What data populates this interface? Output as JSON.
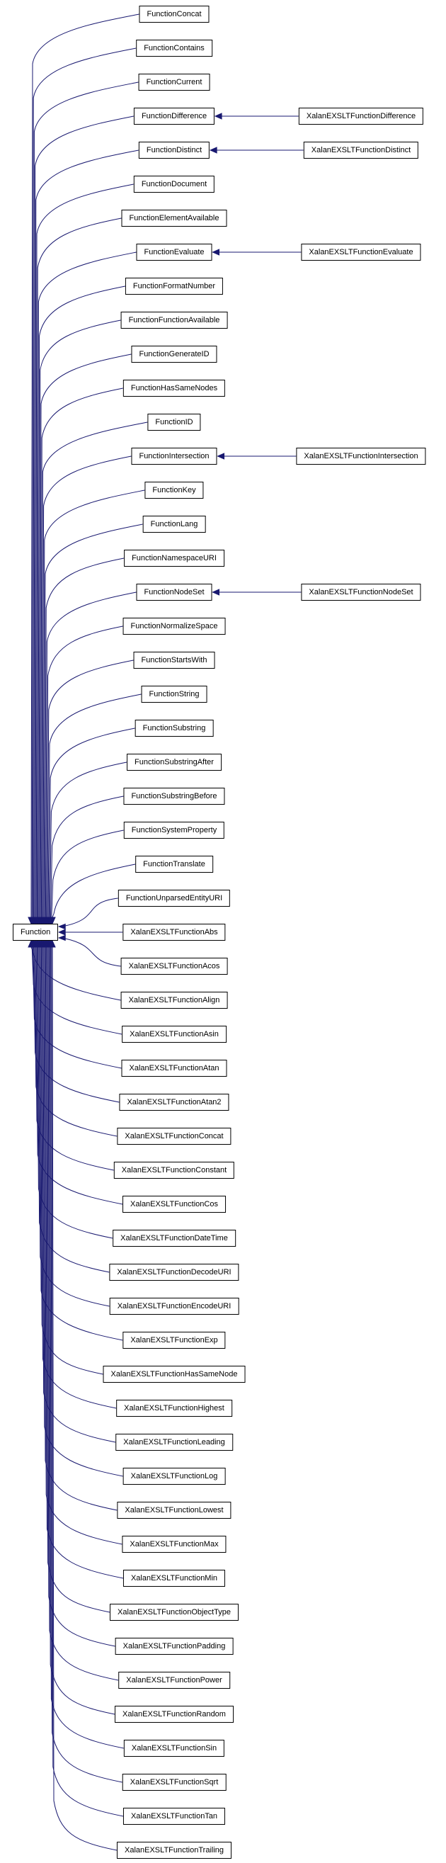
{
  "diagram": {
    "kind": "class-inheritance-graph",
    "base": {
      "label": "Function"
    },
    "colors": {
      "edge": "#191970",
      "box_border": "#000000",
      "text": "#000000",
      "background": "#ffffff"
    },
    "rows": [
      {
        "label": "FunctionConcat",
        "derived": null
      },
      {
        "label": "FunctionContains",
        "derived": null
      },
      {
        "label": "FunctionCurrent",
        "derived": null
      },
      {
        "label": "FunctionDifference",
        "derived": "XalanEXSLTFunctionDifference"
      },
      {
        "label": "FunctionDistinct",
        "derived": "XalanEXSLTFunctionDistinct"
      },
      {
        "label": "FunctionDocument",
        "derived": null
      },
      {
        "label": "FunctionElementAvailable",
        "derived": null
      },
      {
        "label": "FunctionEvaluate",
        "derived": "XalanEXSLTFunctionEvaluate"
      },
      {
        "label": "FunctionFormatNumber",
        "derived": null
      },
      {
        "label": "FunctionFunctionAvailable",
        "derived": null
      },
      {
        "label": "FunctionGenerateID",
        "derived": null
      },
      {
        "label": "FunctionHasSameNodes",
        "derived": null
      },
      {
        "label": "FunctionID",
        "derived": null
      },
      {
        "label": "FunctionIntersection",
        "derived": "XalanEXSLTFunctionIntersection"
      },
      {
        "label": "FunctionKey",
        "derived": null
      },
      {
        "label": "FunctionLang",
        "derived": null
      },
      {
        "label": "FunctionNamespaceURI",
        "derived": null
      },
      {
        "label": "FunctionNodeSet",
        "derived": "XalanEXSLTFunctionNodeSet"
      },
      {
        "label": "FunctionNormalizeSpace",
        "derived": null
      },
      {
        "label": "FunctionStartsWith",
        "derived": null
      },
      {
        "label": "FunctionString",
        "derived": null
      },
      {
        "label": "FunctionSubstring",
        "derived": null
      },
      {
        "label": "FunctionSubstringAfter",
        "derived": null
      },
      {
        "label": "FunctionSubstringBefore",
        "derived": null
      },
      {
        "label": "FunctionSystemProperty",
        "derived": null
      },
      {
        "label": "FunctionTranslate",
        "derived": null
      },
      {
        "label": "FunctionUnparsedEntityURI",
        "derived": null
      },
      {
        "label": "XalanEXSLTFunctionAbs",
        "derived": null
      },
      {
        "label": "XalanEXSLTFunctionAcos",
        "derived": null
      },
      {
        "label": "XalanEXSLTFunctionAlign",
        "derived": null
      },
      {
        "label": "XalanEXSLTFunctionAsin",
        "derived": null
      },
      {
        "label": "XalanEXSLTFunctionAtan",
        "derived": null
      },
      {
        "label": "XalanEXSLTFunctionAtan2",
        "derived": null
      },
      {
        "label": "XalanEXSLTFunctionConcat",
        "derived": null
      },
      {
        "label": "XalanEXSLTFunctionConstant",
        "derived": null
      },
      {
        "label": "XalanEXSLTFunctionCos",
        "derived": null
      },
      {
        "label": "XalanEXSLTFunctionDateTime",
        "derived": null
      },
      {
        "label": "XalanEXSLTFunctionDecodeURI",
        "derived": null
      },
      {
        "label": "XalanEXSLTFunctionEncodeURI",
        "derived": null
      },
      {
        "label": "XalanEXSLTFunctionExp",
        "derived": null
      },
      {
        "label": "XalanEXSLTFunctionHasSameNode",
        "derived": null
      },
      {
        "label": "XalanEXSLTFunctionHighest",
        "derived": null
      },
      {
        "label": "XalanEXSLTFunctionLeading",
        "derived": null
      },
      {
        "label": "XalanEXSLTFunctionLog",
        "derived": null
      },
      {
        "label": "XalanEXSLTFunctionLowest",
        "derived": null
      },
      {
        "label": "XalanEXSLTFunctionMax",
        "derived": null
      },
      {
        "label": "XalanEXSLTFunctionMin",
        "derived": null
      },
      {
        "label": "XalanEXSLTFunctionObjectType",
        "derived": null
      },
      {
        "label": "XalanEXSLTFunctionPadding",
        "derived": null
      },
      {
        "label": "XalanEXSLTFunctionPower",
        "derived": null
      },
      {
        "label": "XalanEXSLTFunctionRandom",
        "derived": null
      },
      {
        "label": "XalanEXSLTFunctionSin",
        "derived": null
      },
      {
        "label": "XalanEXSLTFunctionSqrt",
        "derived": null
      },
      {
        "label": "XalanEXSLTFunctionTan",
        "derived": null
      },
      {
        "label": "XalanEXSLTFunctionTrailing",
        "derived": null
      }
    ]
  }
}
